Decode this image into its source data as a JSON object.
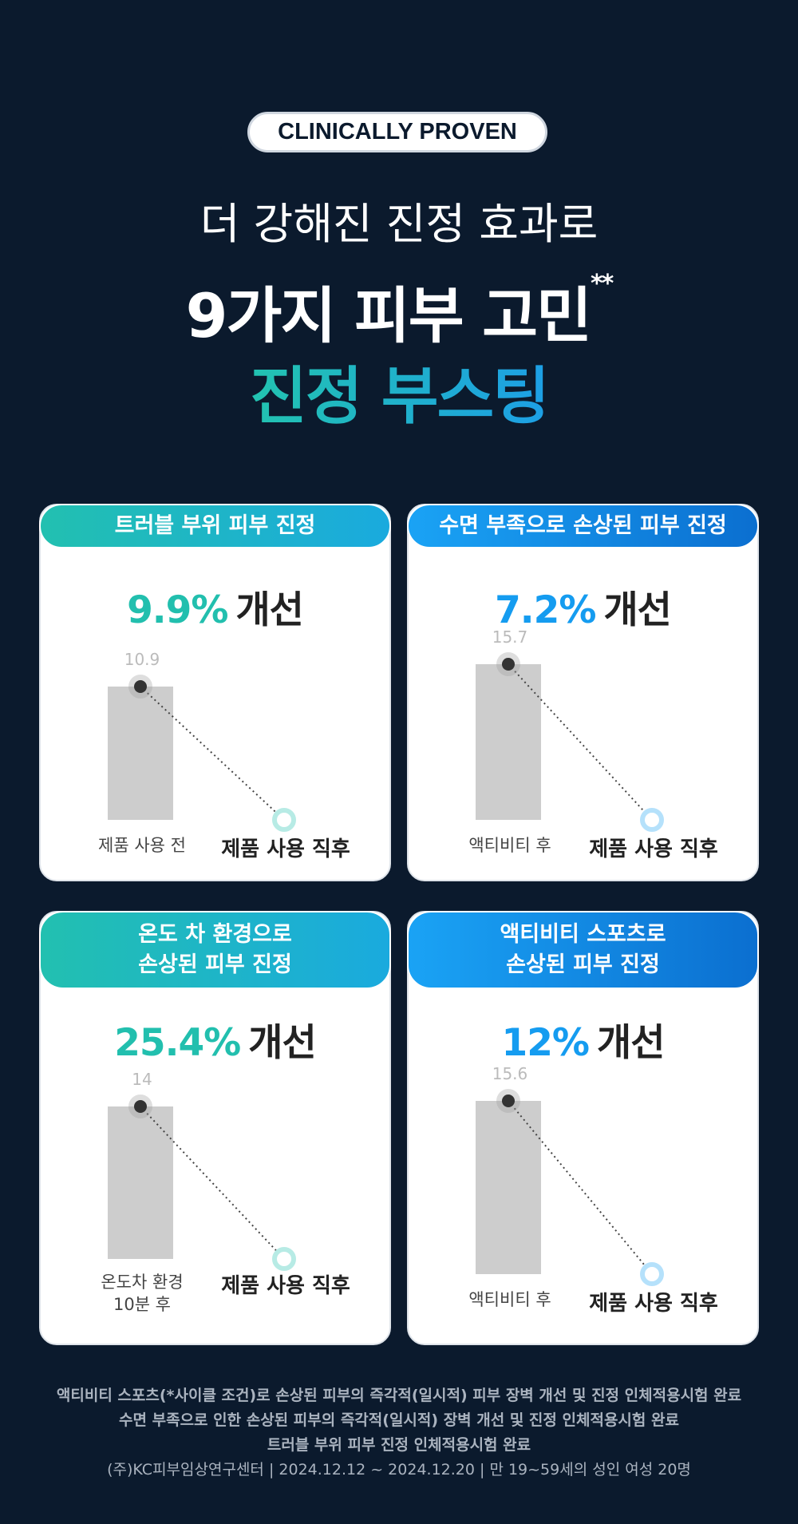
{
  "badge": "CLINICALLY PROVEN",
  "headline": {
    "line1": "더 강해진 진정 효과로",
    "line2": "9가지 피부 고민",
    "line2_mark": "**",
    "line3": "진정 부스팅"
  },
  "cards": [
    {
      "title": [
        "트러블 부위 피부 진정"
      ],
      "improvement": "9.9%",
      "improvement_word": "개선",
      "before_value": "10.9",
      "before_label": [
        "제품 사용 전"
      ],
      "after_label": "제품 사용 직후"
    },
    {
      "title": [
        "수면 부족으로 손상된 피부 진정"
      ],
      "improvement": "7.2%",
      "improvement_word": "개선",
      "before_value": "15.7",
      "before_label": [
        "액티비티 후"
      ],
      "after_label": "제품 사용 직후"
    },
    {
      "title": [
        "온도 차 환경으로",
        "손상된 피부 진정"
      ],
      "improvement": "25.4%",
      "improvement_word": "개선",
      "before_value": "14",
      "before_label": [
        "온도차 환경",
        "10분 후"
      ],
      "after_label": "제품 사용 직후"
    },
    {
      "title": [
        "액티비티 스포츠로",
        "손상된 피부 진정"
      ],
      "improvement": "12%",
      "improvement_word": "개선",
      "before_value": "15.6",
      "before_label": [
        "액티비티 후"
      ],
      "after_label": "제품 사용 직후"
    }
  ],
  "footnotes": [
    "액티비티 스포츠(*사이클 조건)로 손상된 피부의 즉각적(일시적) 피부 장벽 개선 및 진정 인체적용시험 완료",
    "수면 부족으로 인한 손상된 피부의 즉각적(일시적) 장벽 개선 및 진정 인체적용시험 완료",
    "트러블 부위 피부 진정 인체적용시험 완료",
    "(주)KC피부임상연구센터 | 2024.12.12 ~ 2024.12.20 | 만 19~59세의 성인 여성 20명"
  ]
}
